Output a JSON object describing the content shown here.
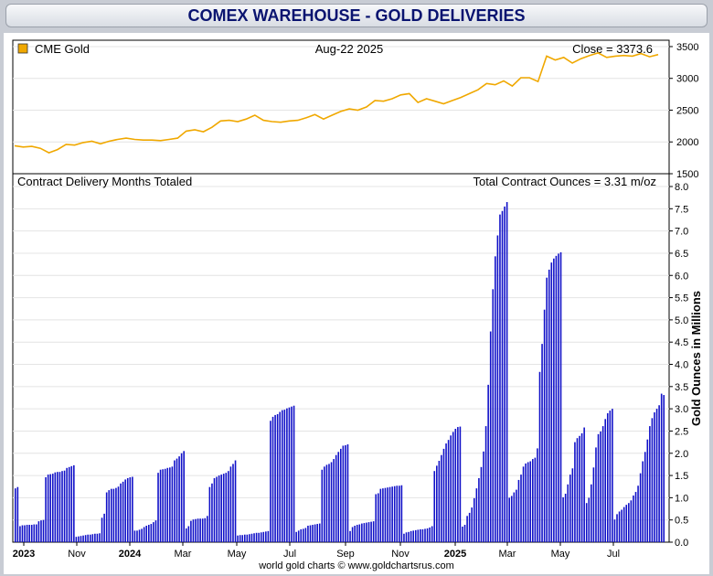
{
  "page": {
    "title": "COMEX WAREHOUSE - GOLD DELIVERIES",
    "footer": "world gold charts © www.goldchartsrus.com"
  },
  "colors": {
    "gold_line": "#f0a800",
    "bars": "#1010c8",
    "y2_label": "#1010c8",
    "title": "#0a1470"
  },
  "chart_data": [
    {
      "type": "line",
      "legend": "CME Gold",
      "date_label": "Aug-22  2025",
      "close_label": "Close = 3373.6",
      "ylim": [
        1500,
        3600
      ],
      "yticks": [
        "3500",
        "3000",
        "2500",
        "2000",
        "1500"
      ],
      "x_start": "2022-09",
      "x_end": "2025-08-22",
      "series": [
        {
          "values": [
            1940,
            1920,
            1930,
            1900,
            1830,
            1880,
            1960,
            1950,
            1990,
            2010,
            1970,
            2010,
            2040,
            2060,
            2040,
            2030,
            2030,
            2020,
            2040,
            2060,
            2170,
            2190,
            2160,
            2230,
            2330,
            2340,
            2320,
            2360,
            2420,
            2340,
            2320,
            2310,
            2330,
            2340,
            2380,
            2430,
            2360,
            2420,
            2480,
            2520,
            2500,
            2550,
            2650,
            2640,
            2680,
            2740,
            2760,
            2620,
            2680,
            2640,
            2600,
            2650,
            2700,
            2760,
            2820,
            2920,
            2900,
            2960,
            2880,
            3010,
            3010,
            2950,
            3350,
            3290,
            3330,
            3240,
            3310,
            3360,
            3400,
            3330,
            3350,
            3360,
            3350,
            3390,
            3340,
            3374
          ]
        }
      ]
    },
    {
      "type": "bar",
      "left_title": "Contract Delivery Months Totaled",
      "total_label": "Total Contract Ounces = 3.31 m/oz",
      "ylabel": "Gold Ounces in Millions",
      "ylim": [
        0,
        8
      ],
      "yticks": [
        "8.0",
        "7.5",
        "7.0",
        "6.5",
        "6.0",
        "5.5",
        "5.0",
        "4.5",
        "4.0",
        "3.5",
        "3.0",
        "2.5",
        "2.0",
        "1.5",
        "1.0",
        "0.5",
        "0.0"
      ],
      "x_tick_labels": [
        "2023",
        "Nov",
        "2024",
        "Mar",
        "May",
        "Jul",
        "Sep",
        "Nov",
        "2025",
        "Mar",
        "May",
        "Jul"
      ],
      "values": [
        1.21,
        1.24,
        0.36,
        0.38,
        0.38,
        0.39,
        0.39,
        0.39,
        0.4,
        0.4,
        0.47,
        0.49,
        0.5,
        1.46,
        1.52,
        1.53,
        1.54,
        1.57,
        1.58,
        1.58,
        1.6,
        1.61,
        1.67,
        1.69,
        1.71,
        1.73,
        0.12,
        0.13,
        0.14,
        0.15,
        0.16,
        0.17,
        0.17,
        0.18,
        0.19,
        0.19,
        0.2,
        0.55,
        0.64,
        1.12,
        1.17,
        1.2,
        1.2,
        1.22,
        1.25,
        1.32,
        1.36,
        1.41,
        1.44,
        1.46,
        1.47,
        0.26,
        0.26,
        0.28,
        0.3,
        0.34,
        0.37,
        0.39,
        0.41,
        0.45,
        0.49,
        1.56,
        1.63,
        1.64,
        1.65,
        1.67,
        1.68,
        1.7,
        1.84,
        1.88,
        1.93,
        2.0,
        2.05,
        0.31,
        0.36,
        0.48,
        0.51,
        0.52,
        0.53,
        0.53,
        0.53,
        0.54,
        0.59,
        1.24,
        1.32,
        1.44,
        1.47,
        1.5,
        1.52,
        1.54,
        1.56,
        1.6,
        1.7,
        1.76,
        1.84,
        0.15,
        0.16,
        0.16,
        0.17,
        0.17,
        0.18,
        0.19,
        0.2,
        0.21,
        0.21,
        0.22,
        0.23,
        0.24,
        0.25,
        2.73,
        2.82,
        2.86,
        2.88,
        2.93,
        2.97,
        2.98,
        3.01,
        3.03,
        3.05,
        3.07,
        0.23,
        0.26,
        0.29,
        0.3,
        0.32,
        0.37,
        0.38,
        0.39,
        0.4,
        0.41,
        0.42,
        1.63,
        1.7,
        1.74,
        1.76,
        1.8,
        1.87,
        1.96,
        2.03,
        2.1,
        2.17,
        2.18,
        2.2,
        0.25,
        0.34,
        0.37,
        0.39,
        0.4,
        0.42,
        0.43,
        0.44,
        0.45,
        0.46,
        0.47,
        1.08,
        1.1,
        1.2,
        1.21,
        1.22,
        1.23,
        1.24,
        1.25,
        1.26,
        1.27,
        1.27,
        1.28,
        0.19,
        0.22,
        0.23,
        0.25,
        0.26,
        0.27,
        0.28,
        0.29,
        0.29,
        0.3,
        0.31,
        0.33,
        0.36,
        1.6,
        1.72,
        1.83,
        1.96,
        2.1,
        2.22,
        2.3,
        2.4,
        2.48,
        2.55,
        2.59,
        2.6,
        0.35,
        0.39,
        0.59,
        0.66,
        0.78,
        0.99,
        1.21,
        1.44,
        1.69,
        2.04,
        2.61,
        3.54,
        4.74,
        5.69,
        6.43,
        6.9,
        7.37,
        7.45,
        7.55,
        7.65,
        1.0,
        1.04,
        1.12,
        1.18,
        1.4,
        1.52,
        1.7,
        1.77,
        1.8,
        1.82,
        1.87,
        1.9,
        2.11,
        3.83,
        4.46,
        5.23,
        5.95,
        6.13,
        6.29,
        6.38,
        6.44,
        6.49,
        6.52,
        1.01,
        1.09,
        1.3,
        1.52,
        1.66,
        2.25,
        2.34,
        2.39,
        2.45,
        2.58,
        0.88,
        1.0,
        1.3,
        1.68,
        2.13,
        2.43,
        2.49,
        2.61,
        2.77,
        2.9,
        2.96,
        3.0,
        0.51,
        0.63,
        0.69,
        0.73,
        0.79,
        0.84,
        0.88,
        0.94,
        1.05,
        1.13,
        1.27,
        1.55,
        1.82,
        2.03,
        2.31,
        2.61,
        2.79,
        2.92,
        3.0,
        3.08,
        3.34,
        3.31
      ]
    }
  ]
}
